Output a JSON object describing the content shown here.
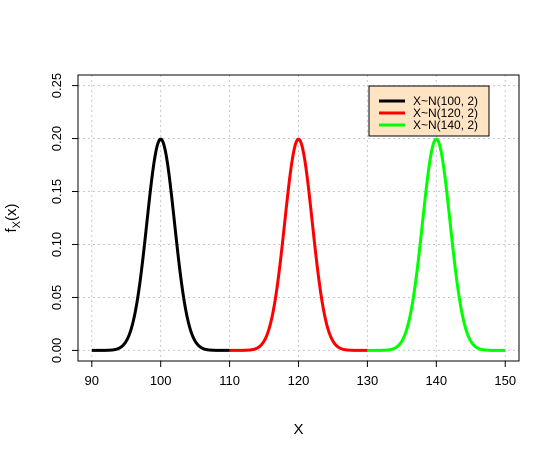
{
  "chart_data": {
    "type": "line",
    "title": "",
    "xlabel": "X",
    "ylabel_main": "f",
    "ylabel_sub": "X",
    "ylabel_suffix": "(x)",
    "xlim": [
      88,
      152
    ],
    "ylim": [
      -0.01,
      0.26
    ],
    "xticks": [
      90,
      100,
      110,
      120,
      130,
      140,
      150
    ],
    "xtick_labels": [
      "90",
      "100",
      "110",
      "120",
      "130",
      "140",
      "150"
    ],
    "yticks": [
      0.0,
      0.05,
      0.1,
      0.15,
      0.2,
      0.25
    ],
    "ytick_labels": [
      "0.00",
      "0.05",
      "0.10",
      "0.15",
      "0.20",
      "0.25"
    ],
    "grid": true,
    "legend_position": "top-right",
    "legend_background": "#FFE4C4",
    "series": [
      {
        "name": "X~N(100, 2)",
        "mean": 100,
        "sd": 2,
        "x_range": [
          90,
          110
        ],
        "color": "#000000"
      },
      {
        "name": "X~N(120, 2)",
        "mean": 120,
        "sd": 2,
        "x_range": [
          110,
          130
        ],
        "color": "#FF0000"
      },
      {
        "name": "X~N(140, 2)",
        "mean": 140,
        "sd": 2,
        "x_range": [
          130,
          150
        ],
        "color": "#00FF00"
      }
    ]
  }
}
